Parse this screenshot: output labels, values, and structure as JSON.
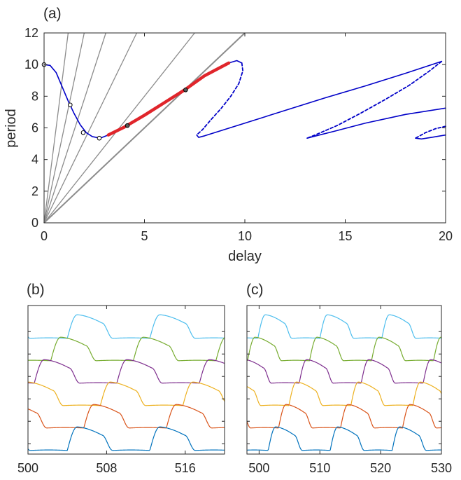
{
  "chart_data": [
    {
      "panel": "(a)",
      "type": "line",
      "xlabel": "delay",
      "ylabel": "period",
      "xlim": [
        0,
        20
      ],
      "ylim": [
        0,
        12
      ],
      "xticks": [
        "0",
        "5",
        "10",
        "15",
        "20"
      ],
      "yticks": [
        "0",
        "2",
        "4",
        "6",
        "8",
        "10",
        "12"
      ],
      "grid": false,
      "colors": {
        "branch": "#0000c8",
        "highlight": "#e0252b",
        "rays": "#8c8c8c"
      },
      "rays_slopes": [
        10,
        6,
        3.9,
        2.6,
        1.6,
        1.2
      ],
      "solid_branch": [
        [
          0,
          10
        ],
        [
          0.3,
          9.95
        ],
        [
          0.6,
          9.5
        ],
        [
          0.9,
          8.6
        ],
        [
          1.2,
          7.7
        ],
        [
          1.5,
          6.9
        ],
        [
          1.8,
          6.2
        ],
        [
          2.1,
          5.7
        ],
        [
          2.4,
          5.45
        ],
        [
          2.8,
          5.35
        ],
        [
          3.2,
          5.55
        ]
      ],
      "red_segment": [
        [
          3.2,
          5.55
        ],
        [
          4,
          6.05
        ],
        [
          5,
          6.8
        ],
        [
          6,
          7.6
        ],
        [
          7,
          8.4
        ],
        [
          8,
          9.3
        ],
        [
          9.2,
          10.1
        ]
      ],
      "branch_1": [
        [
          9.2,
          10.1
        ],
        [
          9.6,
          10.25
        ],
        [
          9.85,
          10.1
        ]
      ],
      "dashed_1": [
        [
          9.85,
          10.1
        ],
        [
          9.9,
          9.6
        ],
        [
          9.7,
          8.8
        ],
        [
          9.3,
          8
        ],
        [
          8.8,
          7.2
        ],
        [
          8.3,
          6.5
        ],
        [
          7.9,
          5.9
        ],
        [
          7.6,
          5.55
        ]
      ],
      "branch_2": [
        [
          7.6,
          5.55
        ],
        [
          7.7,
          5.4
        ],
        [
          8,
          5.5
        ],
        [
          10,
          6.3
        ],
        [
          12,
          7.1
        ],
        [
          14,
          7.9
        ],
        [
          16,
          8.65
        ],
        [
          18,
          9.45
        ],
        [
          19.8,
          10.2
        ]
      ],
      "dashed_2": [
        [
          19.8,
          10.2
        ],
        [
          19.2,
          9.6
        ],
        [
          18.2,
          8.7
        ],
        [
          17,
          7.8
        ],
        [
          15.8,
          6.95
        ],
        [
          14.6,
          6.15
        ],
        [
          13.5,
          5.55
        ],
        [
          13.1,
          5.35
        ]
      ],
      "branch_3": [
        [
          13.1,
          5.35
        ],
        [
          13.4,
          5.45
        ],
        [
          14.5,
          5.8
        ],
        [
          16,
          6.3
        ],
        [
          18,
          6.85
        ],
        [
          20,
          7.25
        ]
      ],
      "dashed_3": [
        [
          20,
          6.1
        ],
        [
          19.5,
          5.95
        ],
        [
          19,
          5.7
        ],
        [
          18.5,
          5.35
        ]
      ],
      "branch_4": [
        [
          18.5,
          5.35
        ],
        [
          18.8,
          5.3
        ],
        [
          19.4,
          5.42
        ],
        [
          20,
          5.55
        ]
      ],
      "open_markers": [
        [
          0,
          10
        ],
        [
          1.3,
          7.45
        ],
        [
          1.95,
          5.7
        ],
        [
          2.75,
          5.35
        ]
      ],
      "filled_markers": [
        [
          4.15,
          6.15
        ],
        [
          7.05,
          8.4
        ]
      ]
    },
    {
      "panel": "(b)",
      "type": "line",
      "xlim": [
        500,
        520
      ],
      "xticks": [
        "500",
        "508",
        "516"
      ],
      "period": 8.4,
      "series_colors": [
        "#4DBEEE",
        "#77AC30",
        "#7E2F8E",
        "#EDB120",
        "#D95319",
        "#0072BD"
      ],
      "phase_offsets": [
        0,
        1.68,
        3.36,
        5.04,
        6.72,
        8.4
      ]
    },
    {
      "panel": "(c)",
      "type": "line",
      "xlim": [
        498,
        530
      ],
      "xticks": [
        "500",
        "510",
        "520",
        "530"
      ],
      "period": 10.2,
      "series_colors": [
        "#4DBEEE",
        "#77AC30",
        "#7E2F8E",
        "#EDB120",
        "#D95319",
        "#0072BD"
      ],
      "phase_offsets": [
        0,
        1.7,
        3.4,
        5.1,
        6.8,
        8.5
      ]
    }
  ]
}
